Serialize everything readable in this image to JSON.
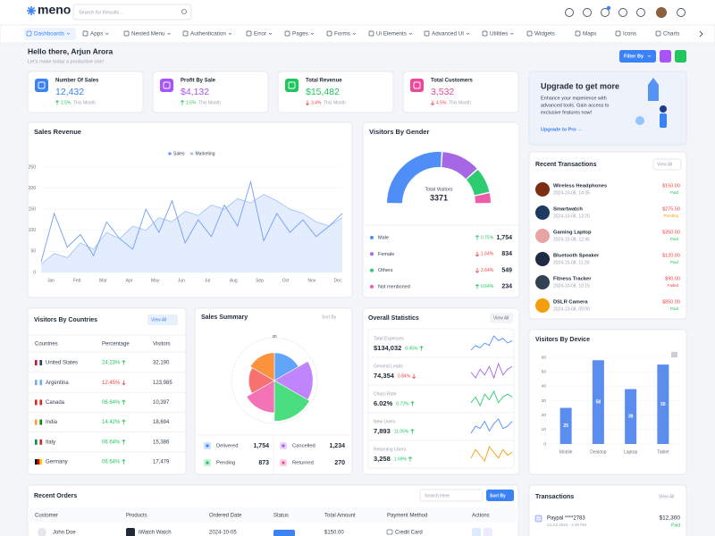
{
  "header": {
    "logo": "meno",
    "search_placeholder": "Search for Results..."
  },
  "nav": [
    "Dashboards",
    "Apps",
    "Nested Menu",
    "Authentication",
    "Error",
    "Pages",
    "Forms",
    "Ui Elements",
    "Advanced UI",
    "Utilities",
    "Widgets",
    "Maps",
    "Icons",
    "Charts"
  ],
  "greeting": {
    "title": "Hello there, Arjun Arora",
    "subtitle": "Let's make today a productive one!",
    "filter_button": "Filter By"
  },
  "stats": [
    {
      "label": "Number Of Sales",
      "value": "12,432",
      "change": "2.5%",
      "period": "This Month",
      "trend": "up",
      "color": "#3b82f6"
    },
    {
      "label": "Profit By Sale",
      "value": "$4,132",
      "change": "1.5%",
      "period": "This Month",
      "trend": "up",
      "color": "#a855f7"
    },
    {
      "label": "Total Revenue",
      "value": "$15,482",
      "change": "3.4%",
      "period": "This Month",
      "trend": "down",
      "color": "#22c55e"
    },
    {
      "label": "Total Customers",
      "value": "3,532",
      "change": "4.5%",
      "period": "This Month",
      "trend": "down",
      "color": "#ec4899"
    }
  ],
  "upgrade": {
    "title": "Upgrade to get more",
    "text": [
      "Enhance your experience with",
      "advanced tools. Gain access to",
      "exclusive features now!"
    ],
    "link": "Upgrade to Pro →"
  },
  "sales_revenue": {
    "title": "Sales Revenue",
    "type": "line",
    "months": [
      "Jan",
      "Feb",
      "Mar",
      "Apr",
      "May",
      "Jun",
      "Jul",
      "Aug",
      "Sep",
      "Oct",
      "Nov",
      "Dec"
    ],
    "ylim": [
      0,
      250
    ],
    "yticks": [
      0,
      50,
      100,
      150,
      200,
      250
    ],
    "grid": true,
    "series": [
      {
        "name": "Sales",
        "color": "#6f9ef5",
        "values": [
          25,
          140,
          60,
          90,
          40,
          120,
          80,
          55,
          150,
          95,
          170,
          70,
          125,
          85,
          160,
          110,
          215,
          75,
          140,
          95,
          125,
          85,
          110,
          140
        ]
      },
      {
        "name": "Marketing",
        "color": "#a9c6f6",
        "fill": "#e3edfd",
        "values": [
          20,
          45,
          35,
          70,
          55,
          95,
          80,
          110,
          100,
          130,
          120,
          145,
          135,
          160,
          150,
          175,
          165,
          185,
          170,
          150,
          140,
          120,
          110,
          130
        ]
      }
    ]
  },
  "gender": {
    "title": "Visitors By Gender",
    "center_label": "Total Visitors",
    "total": "3371",
    "rows": [
      {
        "name": "Male",
        "color": "#4f8ef7",
        "change": "0.75%",
        "trend": "up",
        "value": 1754,
        "value_label": "1,754"
      },
      {
        "name": "Female",
        "color": "#a667e4",
        "change": "1.64%",
        "trend": "down",
        "value": 834,
        "value_label": "834"
      },
      {
        "name": "Others",
        "color": "#2ecc71",
        "change": "2.64%",
        "trend": "down",
        "value": 549,
        "value_label": "549"
      },
      {
        "name": "Not mentioned",
        "color": "#ec5ca8",
        "change": "0.64%",
        "trend": "up",
        "value": 234,
        "value_label": "234"
      }
    ]
  },
  "recent_transactions": {
    "title": "Recent Transactions",
    "view_all": "View All",
    "rows": [
      {
        "name": "Wireless Headphones",
        "date": "2024-10-08, 14:35",
        "amount": "$150.00",
        "status": "Paid",
        "status_color": "#22c55e",
        "icon_color": "#7c2d12"
      },
      {
        "name": "Smartwatch",
        "date": "2024-10-08, 13:20",
        "amount": "$275.50",
        "status": "Pending",
        "status_color": "#f59e0b",
        "icon_color": "#1e3a5f"
      },
      {
        "name": "Gaming Laptop",
        "date": "2024-10-08, 12:45",
        "amount": "$350.00",
        "status": "Paid",
        "status_color": "#22c55e",
        "icon_color": "#e8a3a3"
      },
      {
        "name": "Bluetooth Speaker",
        "date": "2024-10-08, 11:30",
        "amount": "$120.00",
        "status": "Paid",
        "status_color": "#22c55e",
        "icon_color": "#1f2a44"
      },
      {
        "name": "Fitness Tracker",
        "date": "2024-10-08, 10:15",
        "amount": "$90.00",
        "status": "Failed",
        "status_color": "#ef4444",
        "icon_color": "#334155"
      },
      {
        "name": "DSLR Camera",
        "date": "2024-10-08, 09:00",
        "amount": "$850.00",
        "status": "Paid",
        "status_color": "#22c55e",
        "icon_color": "#f59e0b"
      }
    ]
  },
  "countries": {
    "title": "Visitors By Countries",
    "view_all": "View All",
    "columns": [
      "Countries",
      "Percentage",
      "Visitors"
    ],
    "rows": [
      {
        "country": "United States",
        "percentage": "24.23%",
        "trend": "up",
        "visitors": "32,190",
        "flag": [
          "#b22234",
          "#ffffff",
          "#3c3b6e"
        ]
      },
      {
        "country": "Argentina",
        "percentage": "12.45%",
        "trend": "down",
        "visitors": "123,985",
        "flag": [
          "#74acdf",
          "#ffffff",
          "#74acdf"
        ]
      },
      {
        "country": "Canada",
        "percentage": "06.64%",
        "trend": "up",
        "visitors": "10,397",
        "flag": [
          "#d52b1e",
          "#ffffff",
          "#d52b1e"
        ]
      },
      {
        "country": "India",
        "percentage": "14.42%",
        "trend": "up",
        "visitors": "18,694",
        "flag": [
          "#ff9933",
          "#ffffff",
          "#138808"
        ]
      },
      {
        "country": "Italy",
        "percentage": "06.64%",
        "trend": "up",
        "visitors": "15,386",
        "flag": [
          "#009246",
          "#ffffff",
          "#ce2b37"
        ]
      },
      {
        "country": "Germany",
        "percentage": "06.64%",
        "trend": "up",
        "visitors": "17,479",
        "flag": [
          "#000000",
          "#dd0000",
          "#ffce00"
        ]
      }
    ]
  },
  "sales_summary": {
    "title": "Sales Summary",
    "sort_button": "Sort By",
    "polar": {
      "type": "polar",
      "values": [
        13,
        18,
        19,
        15,
        12,
        13
      ],
      "colors": [
        "#60a5fa",
        "#c084fc",
        "#4ade80",
        "#f472b6",
        "#f87171",
        "#fb923c"
      ],
      "rlim": [
        0,
        20
      ],
      "rticks": [
        20
      ]
    },
    "stats": [
      {
        "label": "Delivered",
        "value": "1,754",
        "color": "#3b82f6"
      },
      {
        "label": "Cancelled",
        "value": "1,234",
        "color": "#a855f7"
      },
      {
        "label": "Pending",
        "value": "873",
        "color": "#22c55e"
      },
      {
        "label": "Returned",
        "value": "270",
        "color": "#ec4899"
      }
    ]
  },
  "overall": {
    "title": "Overall Statistics",
    "view_all": "View All",
    "rows": [
      {
        "label": "Total Expenses",
        "value": "$134,032",
        "change": "0.45%",
        "trend": "up",
        "color": "#4f8ef7",
        "spark": [
          3,
          5,
          4,
          6,
          5,
          9,
          7,
          8,
          6,
          7
        ]
      },
      {
        "label": "General Leads",
        "value": "74,354",
        "change": "0.84%",
        "trend": "down",
        "color": "#a667e4",
        "spark": [
          6,
          4,
          7,
          5,
          8,
          4,
          9,
          5,
          7,
          8
        ]
      },
      {
        "label": "Churn Rate",
        "value": "6.02%",
        "change": "0.72%",
        "trend": "up",
        "color": "#2ecc71",
        "spark": [
          4,
          6,
          3,
          7,
          5,
          8,
          4,
          6,
          7,
          6
        ]
      },
      {
        "label": "New Users",
        "value": "7,893",
        "change": "11.05%",
        "trend": "up",
        "color": "#4f8ef7",
        "spark": [
          3,
          6,
          5,
          8,
          4,
          7,
          9,
          5,
          6,
          8
        ]
      },
      {
        "label": "Returning Users",
        "value": "3,258",
        "change": "1.69%",
        "trend": "up",
        "color": "#f59e0b",
        "spark": [
          4,
          7,
          5,
          3,
          8,
          6,
          4,
          7,
          5,
          6
        ]
      }
    ]
  },
  "devices": {
    "title": "Visitors By Device",
    "type": "bar",
    "categories": [
      "Mobile",
      "Desktop",
      "Laptop",
      "Tablet"
    ],
    "values": [
      25,
      58,
      38,
      55
    ],
    "color": "#5b8def",
    "ylim": [
      0,
      60
    ],
    "yticks": [
      0,
      10,
      20,
      30,
      40,
      50,
      60
    ],
    "grid": true
  },
  "recent_orders": {
    "title": "Recent Orders",
    "search_placeholder": "Search Here",
    "sort_button": "Sort By",
    "columns": [
      "Customer",
      "Products",
      "Ordered Date",
      "Status",
      "Total Amount",
      "Payment Method",
      "Actions"
    ],
    "rows": [
      {
        "customer": "John Doe",
        "product": "iWatch Watch",
        "date": "2024-10-05",
        "amount": "$150.00",
        "payment": "Credit Card"
      }
    ]
  },
  "transactions": {
    "title": "Transactions",
    "view_all": "View All",
    "rows": [
      {
        "name": "Paypal ****2783",
        "date": "24,Jul 2024 - 4:30 PM",
        "amount": "$12,300",
        "status": "Paid",
        "status_color": "#22c55e"
      }
    ]
  }
}
